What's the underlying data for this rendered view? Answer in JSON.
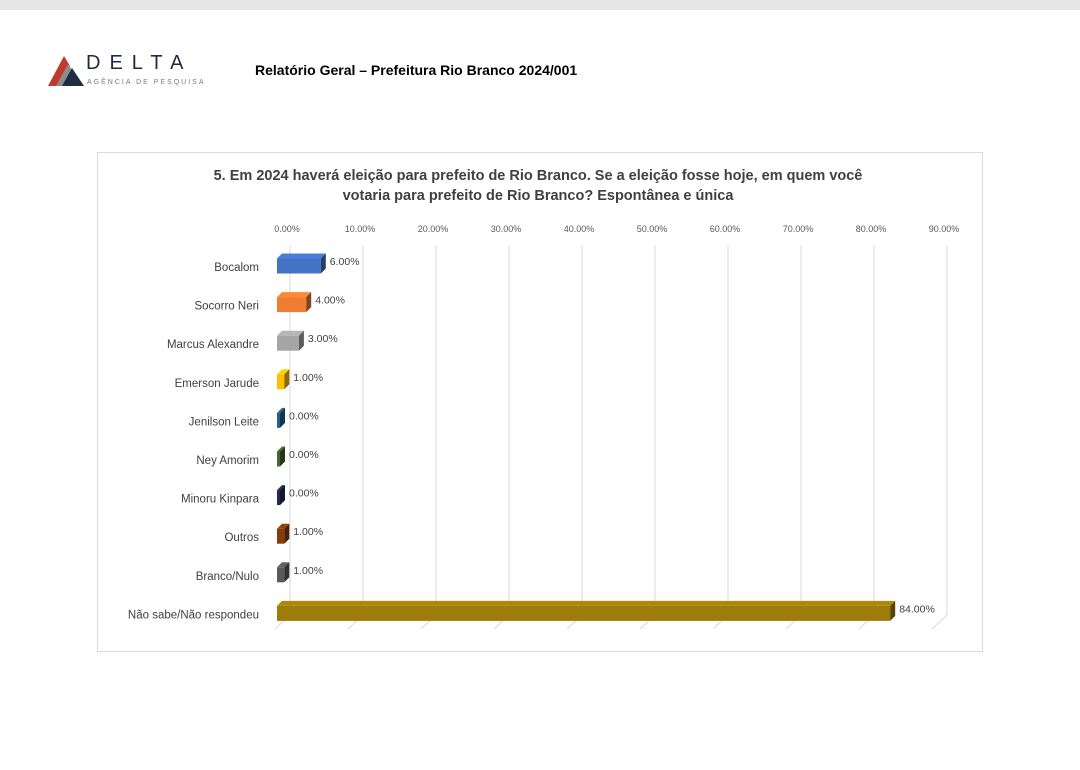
{
  "header": {
    "logo_word": "DELTA",
    "logo_tagline": "AGÊNCIA DE PESQUISA",
    "report_title": "Relatório Geral – Prefeitura Rio Branco 2024/001"
  },
  "colors": {
    "logo_red": "#c0392b",
    "logo_navy": "#1f2a44",
    "gridline": "#d9d9d9",
    "axis_text": "#595959"
  },
  "chart_data": {
    "type": "bar",
    "orientation": "horizontal",
    "style": "3d",
    "title_line1": "5. Em 2024 haverá eleição para prefeito de Rio Branco. Se a eleição fosse hoje, em quem você",
    "title_line2": "votaria para prefeito de Rio Branco? Espontânea e única",
    "xlim": [
      0,
      90
    ],
    "xticks": [
      "0.00%",
      "10.00%",
      "20.00%",
      "30.00%",
      "40.00%",
      "50.00%",
      "60.00%",
      "70.00%",
      "80.00%",
      "90.00%"
    ],
    "grid": true,
    "axis_position": "top",
    "categories": [
      "Bocalom",
      "Socorro Neri",
      "Marcus Alexandre",
      "Emerson Jarude",
      "Jenilson Leite",
      "Ney Amorim",
      "Minoru Kinpara",
      "Outros",
      "Branco/Nulo",
      "Não sabe/Não respondeu"
    ],
    "values": [
      6.0,
      4.0,
      3.0,
      1.0,
      0.0,
      0.0,
      0.0,
      1.0,
      1.0,
      84.0
    ],
    "labels": [
      "6.00%",
      "4.00%",
      "3.00%",
      "1.00%",
      "0.00%",
      "0.00%",
      "0.00%",
      "1.00%",
      "1.00%",
      "84.00%"
    ],
    "bar_colors": [
      "#4472c4",
      "#ed7d31",
      "#a5a5a5",
      "#ffc000",
      "#255e91",
      "#43682b",
      "#1f2a55",
      "#843c0c",
      "#595959",
      "#9e7c0a"
    ]
  }
}
